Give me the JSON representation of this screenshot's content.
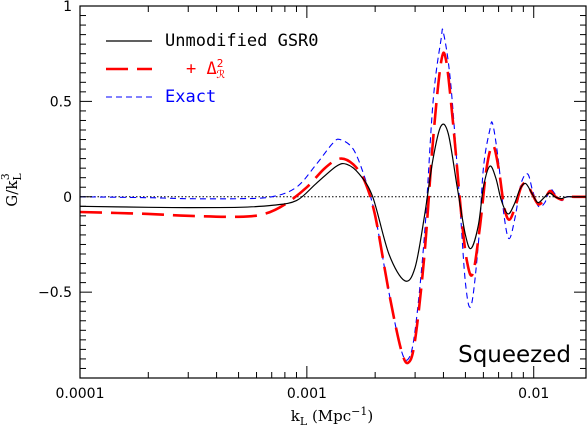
{
  "chart_data": {
    "type": "line",
    "xscale": "log",
    "xlim": [
      0.0001,
      0.017
    ],
    "ylim": [
      -0.95,
      1.0
    ],
    "xlabel": {
      "main": "k",
      "sub": "L",
      "units": "(Mpc",
      "units_sup": "−1",
      "units_close": ")"
    },
    "ylabel": {
      "num": "G/k",
      "sub": "L",
      "sup": "3"
    },
    "x_ticks": [
      {
        "value": 0.0001,
        "label": "0.0001"
      },
      {
        "value": 0.001,
        "label": "0.001"
      },
      {
        "value": 0.01,
        "label": "0.01"
      }
    ],
    "y_ticks": [
      {
        "value": 1.0,
        "label": "1"
      },
      {
        "value": 0.5,
        "label": "0.5"
      },
      {
        "value": 0.0,
        "label": "0"
      },
      {
        "value": -0.5,
        "label": "−0.5"
      }
    ],
    "zero_line": true,
    "panel_label": "Squeezed",
    "series": [
      {
        "name": "Unmodified GSR0",
        "color": "#000000",
        "style": "solid",
        "points": [
          [
            0.0001,
            -0.05
          ],
          [
            0.0002,
            -0.055
          ],
          [
            0.0003,
            -0.057
          ],
          [
            0.0005,
            -0.055
          ],
          [
            0.0007,
            -0.045
          ],
          [
            0.0009,
            -0.02
          ],
          [
            0.0011,
            0.07
          ],
          [
            0.00135,
            0.16
          ],
          [
            0.0015,
            0.17
          ],
          [
            0.0017,
            0.12
          ],
          [
            0.00195,
            0.0
          ],
          [
            0.0023,
            -0.3
          ],
          [
            0.0027,
            -0.44
          ],
          [
            0.003,
            -0.37
          ],
          [
            0.0033,
            -0.1
          ],
          [
            0.0036,
            0.2
          ],
          [
            0.0039,
            0.37
          ],
          [
            0.0042,
            0.33
          ],
          [
            0.0046,
            0.05
          ],
          [
            0.005,
            -0.2
          ],
          [
            0.0053,
            -0.27
          ],
          [
            0.0057,
            -0.15
          ],
          [
            0.006,
            0.05
          ],
          [
            0.0064,
            0.16
          ],
          [
            0.0068,
            0.1
          ],
          [
            0.0072,
            -0.02
          ],
          [
            0.0077,
            -0.09
          ],
          [
            0.0082,
            -0.04
          ],
          [
            0.0087,
            0.04
          ],
          [
            0.0092,
            0.07
          ],
          [
            0.0098,
            0.02
          ],
          [
            0.0104,
            -0.03
          ],
          [
            0.011,
            -0.01
          ],
          [
            0.0117,
            0.02
          ],
          [
            0.0124,
            0.0
          ],
          [
            0.0132,
            -0.01
          ],
          [
            0.014,
            0.0
          ],
          [
            0.015,
            0.0
          ],
          [
            0.017,
            0.0
          ]
        ]
      },
      {
        "name": "+ Δ²_R",
        "legend_plain": "+ Δ",
        "legend_sup": "2",
        "legend_sub": "ℛ",
        "color": "#ff0000",
        "style": "long-dash",
        "points": [
          [
            0.0001,
            -0.08
          ],
          [
            0.0002,
            -0.09
          ],
          [
            0.0003,
            -0.1
          ],
          [
            0.0005,
            -0.105
          ],
          [
            0.00065,
            -0.09
          ],
          [
            0.0008,
            -0.04
          ],
          [
            0.001,
            0.05
          ],
          [
            0.0012,
            0.15
          ],
          [
            0.0014,
            0.2
          ],
          [
            0.0016,
            0.17
          ],
          [
            0.0018,
            0.08
          ],
          [
            0.002,
            -0.1
          ],
          [
            0.0023,
            -0.5
          ],
          [
            0.0026,
            -0.8
          ],
          [
            0.0028,
            -0.87
          ],
          [
            0.003,
            -0.75
          ],
          [
            0.0033,
            -0.3
          ],
          [
            0.0036,
            0.3
          ],
          [
            0.0039,
            0.7
          ],
          [
            0.0041,
            0.72
          ],
          [
            0.0044,
            0.4
          ],
          [
            0.0048,
            -0.1
          ],
          [
            0.0051,
            -0.35
          ],
          [
            0.0054,
            -0.4
          ],
          [
            0.0058,
            -0.15
          ],
          [
            0.0062,
            0.15
          ],
          [
            0.0066,
            0.27
          ],
          [
            0.007,
            0.15
          ],
          [
            0.0074,
            -0.05
          ],
          [
            0.0078,
            -0.12
          ],
          [
            0.0083,
            -0.05
          ],
          [
            0.0088,
            0.05
          ],
          [
            0.0093,
            0.07
          ],
          [
            0.0099,
            0.01
          ],
          [
            0.0105,
            -0.04
          ],
          [
            0.0112,
            -0.01
          ],
          [
            0.0118,
            0.03
          ],
          [
            0.0125,
            0.0
          ],
          [
            0.0133,
            -0.015
          ],
          [
            0.014,
            0.0
          ],
          [
            0.015,
            0.0
          ],
          [
            0.017,
            0.0
          ]
        ]
      },
      {
        "name": "Exact",
        "color": "#0000ff",
        "style": "short-dash",
        "points": [
          [
            0.0001,
            0.0
          ],
          [
            0.0002,
            -0.005
          ],
          [
            0.0003,
            -0.01
          ],
          [
            0.0005,
            -0.01
          ],
          [
            0.0007,
            0.0
          ],
          [
            0.0009,
            0.05
          ],
          [
            0.0011,
            0.17
          ],
          [
            0.0013,
            0.28
          ],
          [
            0.0014,
            0.3
          ],
          [
            0.0016,
            0.25
          ],
          [
            0.0018,
            0.1
          ],
          [
            0.002,
            -0.1
          ],
          [
            0.0023,
            -0.5
          ],
          [
            0.0026,
            -0.8
          ],
          [
            0.0028,
            -0.85
          ],
          [
            0.003,
            -0.7
          ],
          [
            0.0033,
            -0.2
          ],
          [
            0.0036,
            0.5
          ],
          [
            0.0039,
            0.82
          ],
          [
            0.004,
            0.86
          ],
          [
            0.0043,
            0.6
          ],
          [
            0.0047,
            0.0
          ],
          [
            0.005,
            -0.45
          ],
          [
            0.0053,
            -0.57
          ],
          [
            0.0057,
            -0.25
          ],
          [
            0.006,
            0.15
          ],
          [
            0.0064,
            0.35
          ],
          [
            0.0066,
            0.38
          ],
          [
            0.007,
            0.18
          ],
          [
            0.0074,
            -0.1
          ],
          [
            0.0078,
            -0.22
          ],
          [
            0.0083,
            -0.1
          ],
          [
            0.0088,
            0.07
          ],
          [
            0.0094,
            0.12
          ],
          [
            0.0099,
            0.03
          ],
          [
            0.0105,
            -0.05
          ],
          [
            0.0112,
            -0.03
          ],
          [
            0.0118,
            0.04
          ],
          [
            0.0125,
            0.01
          ],
          [
            0.0133,
            -0.02
          ],
          [
            0.014,
            0.0
          ],
          [
            0.015,
            0.0
          ],
          [
            0.017,
            0.0
          ]
        ]
      }
    ],
    "legend": {
      "position": "top-left"
    }
  }
}
